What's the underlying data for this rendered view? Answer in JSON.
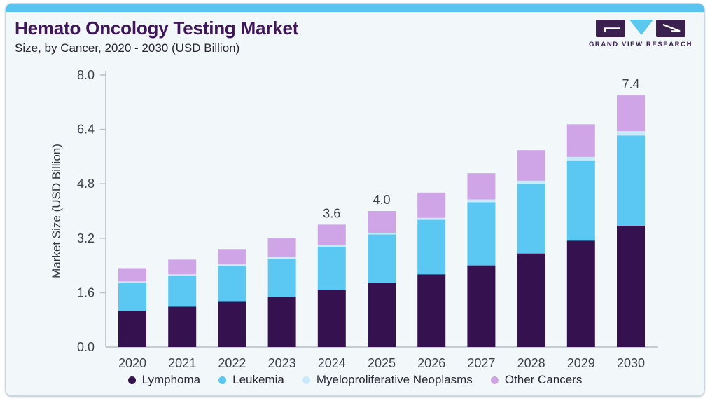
{
  "header": {
    "title": "Hemato Oncology Testing Market",
    "subtitle": "Size, by Cancer, 2020 - 2030 (USD Billion)"
  },
  "logo": {
    "text": "GRAND VIEW RESEARCH",
    "mark_color": "#3a2150",
    "triangle_color": "#5bc8f0"
  },
  "colors": {
    "accent_strip": "#58c4ef",
    "card_background": "#f2f7fa",
    "axis_line": "#b6bdc4",
    "axis_text": "#3d414a",
    "title_text": "#3f1659"
  },
  "chart_data": {
    "type": "bar",
    "stacked": true,
    "title": "Hemato Oncology Testing Market",
    "subtitle": "Size, by Cancer, 2020 - 2030 (USD Billion)",
    "xlabel": "",
    "ylabel": "Market Size (USD Billion)",
    "ylim": [
      0,
      8.0
    ],
    "yticks": [
      0.0,
      1.6,
      3.2,
      4.8,
      6.4,
      8.0
    ],
    "ytick_labels": [
      "0.0",
      "1.6",
      "3.2",
      "4.8",
      "6.4",
      "8.0"
    ],
    "grid": false,
    "legend_position": "bottom",
    "categories": [
      "2020",
      "2021",
      "2022",
      "2023",
      "2024",
      "2025",
      "2026",
      "2027",
      "2028",
      "2029",
      "2030"
    ],
    "series": [
      {
        "name": "Lymphoma",
        "color": "#351150",
        "values": [
          1.06,
          1.19,
          1.33,
          1.48,
          1.67,
          1.88,
          2.14,
          2.4,
          2.75,
          3.13,
          3.57
        ]
      },
      {
        "name": "Leukemia",
        "color": "#5bc8f4",
        "values": [
          0.82,
          0.9,
          1.06,
          1.12,
          1.28,
          1.43,
          1.6,
          1.86,
          2.05,
          2.36,
          2.65
        ]
      },
      {
        "name": "Myeloproliferative Neoplasms",
        "color": "#c9e9fb",
        "values": [
          0.05,
          0.05,
          0.05,
          0.05,
          0.05,
          0.05,
          0.06,
          0.08,
          0.09,
          0.1,
          0.13
        ]
      },
      {
        "name": "Other Cancers",
        "color": "#cfa5e8",
        "values": [
          0.39,
          0.43,
          0.44,
          0.56,
          0.6,
          0.64,
          0.74,
          0.77,
          0.9,
          0.96,
          1.05
        ]
      }
    ],
    "totals": [
      2.32,
      2.57,
      2.88,
      3.21,
      3.6,
      4.0,
      4.54,
      5.11,
      5.79,
      6.55,
      7.4
    ],
    "total_labels": {
      "2024": "3.6",
      "2025": "4.0",
      "2030": "7.4"
    }
  }
}
